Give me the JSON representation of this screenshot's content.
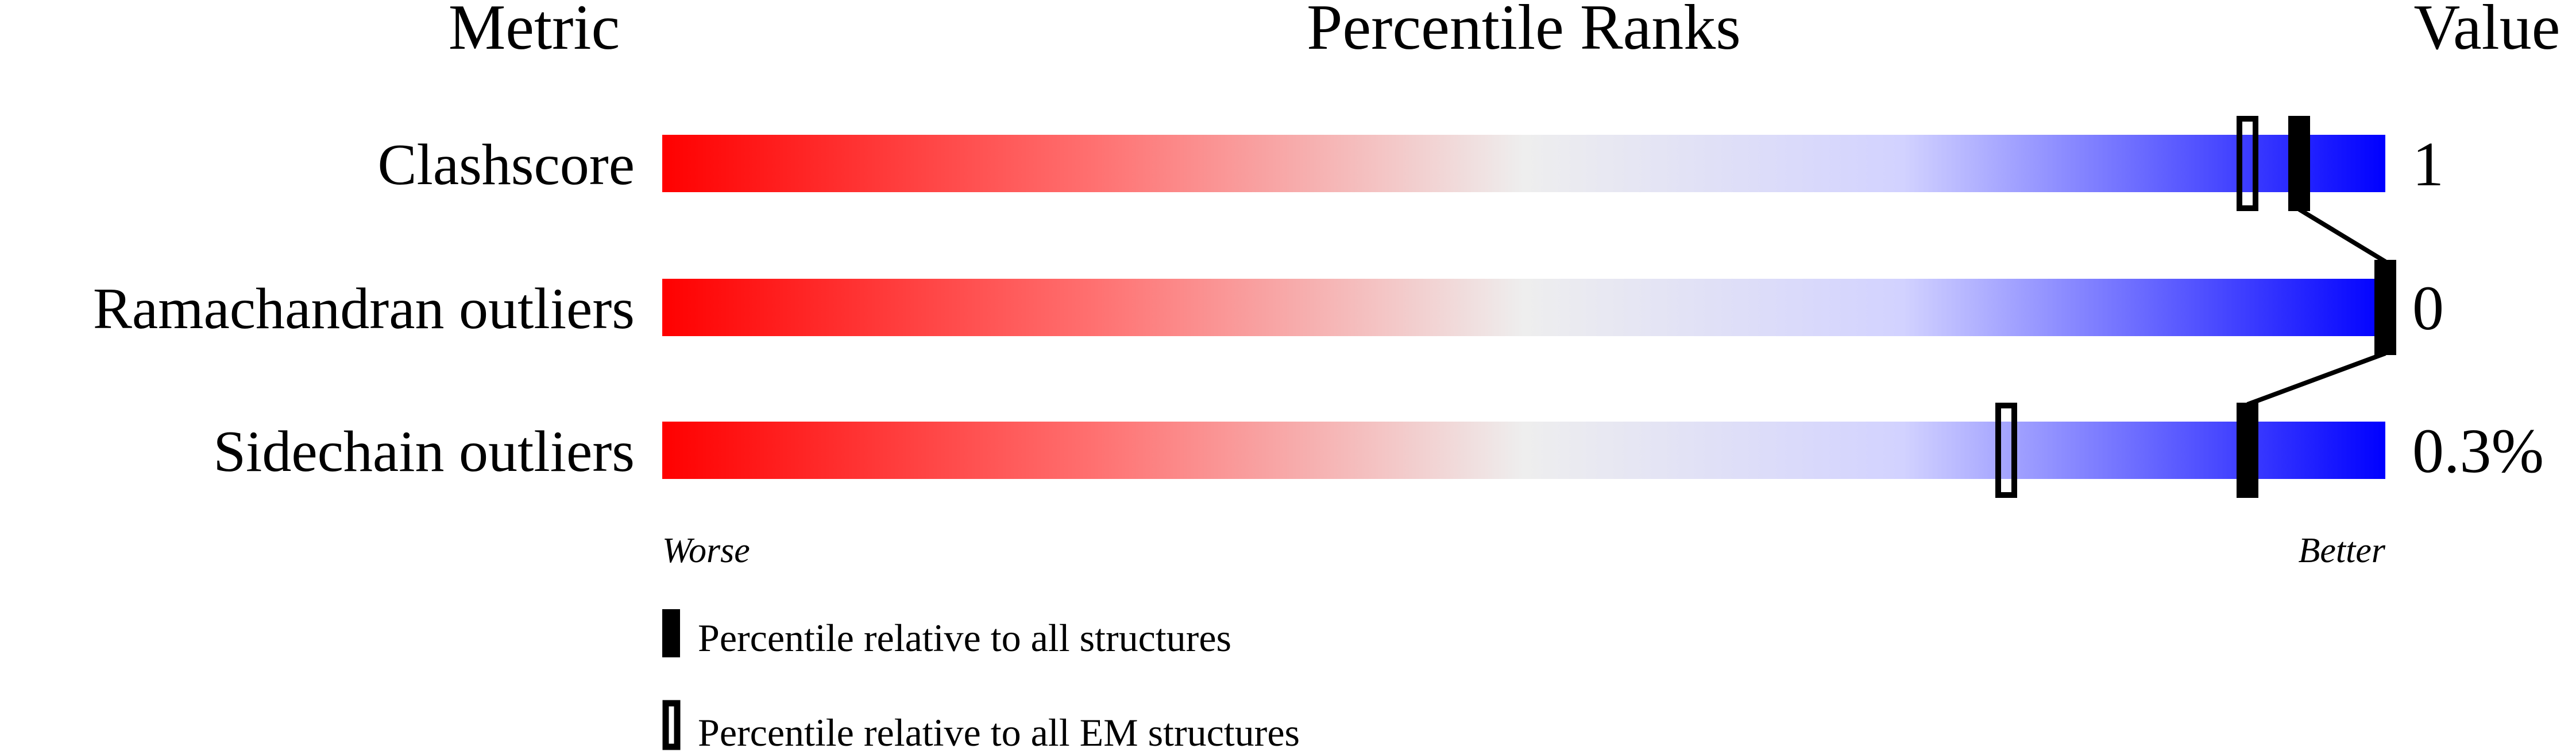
{
  "chart_data": {
    "type": "percentile-slider",
    "headers": {
      "metric": "Metric",
      "ranks": "Percentile Ranks",
      "value": "Value"
    },
    "xlim": [
      0,
      100
    ],
    "scale_labels": {
      "left": "Worse",
      "right": "Better"
    },
    "gradient_colors": {
      "worse": "#ff0000",
      "middle": "#eeeeee",
      "better": "#0000ff"
    },
    "rows": [
      {
        "metric": "Clashscore",
        "value": "1",
        "percentile_all": 95,
        "percentile_em": 92
      },
      {
        "metric": "Ramachandran outliers",
        "value": "0",
        "percentile_all": 100,
        "percentile_em": null
      },
      {
        "metric": "Sidechain outliers",
        "value": "0.3%",
        "percentile_all": 92,
        "percentile_em": 78
      }
    ],
    "legend": [
      {
        "marker": "filled",
        "label": "Percentile relative to all structures"
      },
      {
        "marker": "hollow",
        "label": "Percentile relative to all EM structures"
      }
    ]
  }
}
